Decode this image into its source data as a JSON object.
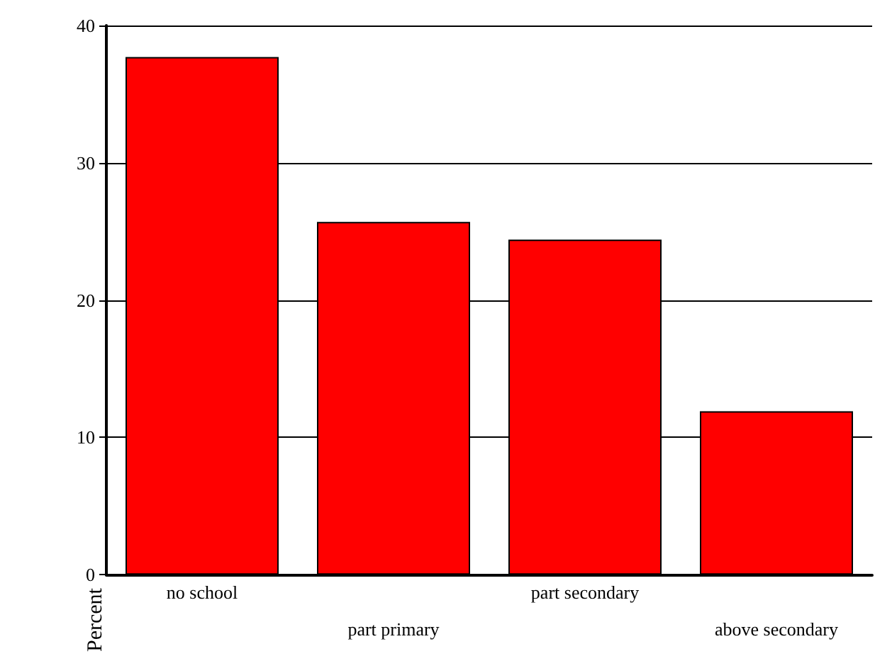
{
  "chart_data": {
    "type": "bar",
    "ylabel": "Percent",
    "categories": [
      "no school",
      "part primary",
      "part secondary",
      "above secondary"
    ],
    "values": [
      37.7,
      25.7,
      24.4,
      11.9
    ],
    "color": "#ff0000",
    "ylim": [
      0,
      40
    ],
    "yticks": [
      0,
      10,
      20,
      30,
      40
    ],
    "grid": "y"
  }
}
